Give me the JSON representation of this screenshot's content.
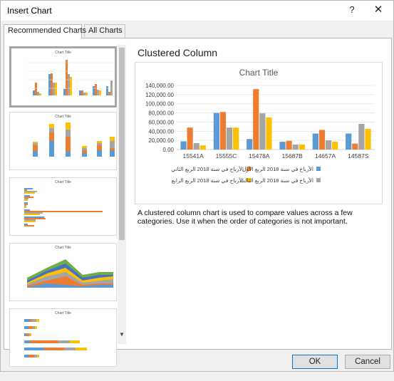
{
  "window": {
    "title": "Insert Chart",
    "help_label": "?",
    "close_label": "✕"
  },
  "tabs": [
    {
      "label": "Recommended Charts",
      "active": true
    },
    {
      "label": "All Charts",
      "active": false
    }
  ],
  "thumbnails": [
    {
      "title": "Chart Title",
      "kind": "clustered-column",
      "selected": true
    },
    {
      "title": "Chart Title",
      "kind": "stacked-column",
      "selected": false
    },
    {
      "title": "Chart Title",
      "kind": "clustered-bar",
      "selected": false
    },
    {
      "title": "Chart Title",
      "kind": "stacked-area",
      "selected": false
    },
    {
      "title": "Chart Title",
      "kind": "stacked-bar",
      "selected": false
    }
  ],
  "preview": {
    "heading": "Clustered Column",
    "description": "A clustered column chart is used to compare values across a few categories. Use it when the order of categories is not important."
  },
  "buttons": {
    "ok": "OK",
    "cancel": "Cancel"
  },
  "chart_data": {
    "type": "bar",
    "title": "Chart Title",
    "categories": [
      "15541A",
      "15555C",
      "15478A",
      "15687B",
      "14657A",
      "14587S"
    ],
    "yticks": [
      "0.00",
      "20,000.00",
      "40,000.00",
      "60,000.00",
      "80,000.00",
      "100,000.00",
      "120,000.00",
      "140,000.00"
    ],
    "ylim": [
      0,
      140000
    ],
    "grid": true,
    "legend_position": "bottom",
    "series": [
      {
        "name": "الأرباح في سنة 2018 الربع الأول",
        "color": "#5b9bd5",
        "values": [
          18000,
          80000,
          23000,
          17000,
          35000,
          35000
        ]
      },
      {
        "name": "الأرباح في سنة 2018 الربع الثاني",
        "color": "#ed7d31",
        "values": [
          48000,
          82000,
          132000,
          19000,
          43000,
          13000
        ]
      },
      {
        "name": "الأرباح في سنة 2018 الربع الثالث",
        "color": "#a5a5a5",
        "values": [
          14000,
          48000,
          79000,
          11000,
          20000,
          56000
        ]
      },
      {
        "name": "الأرباح في سنة 2018 الربع الرابع",
        "color": "#ffc000",
        "values": [
          9000,
          48000,
          70000,
          11000,
          17000,
          45000
        ]
      }
    ]
  }
}
